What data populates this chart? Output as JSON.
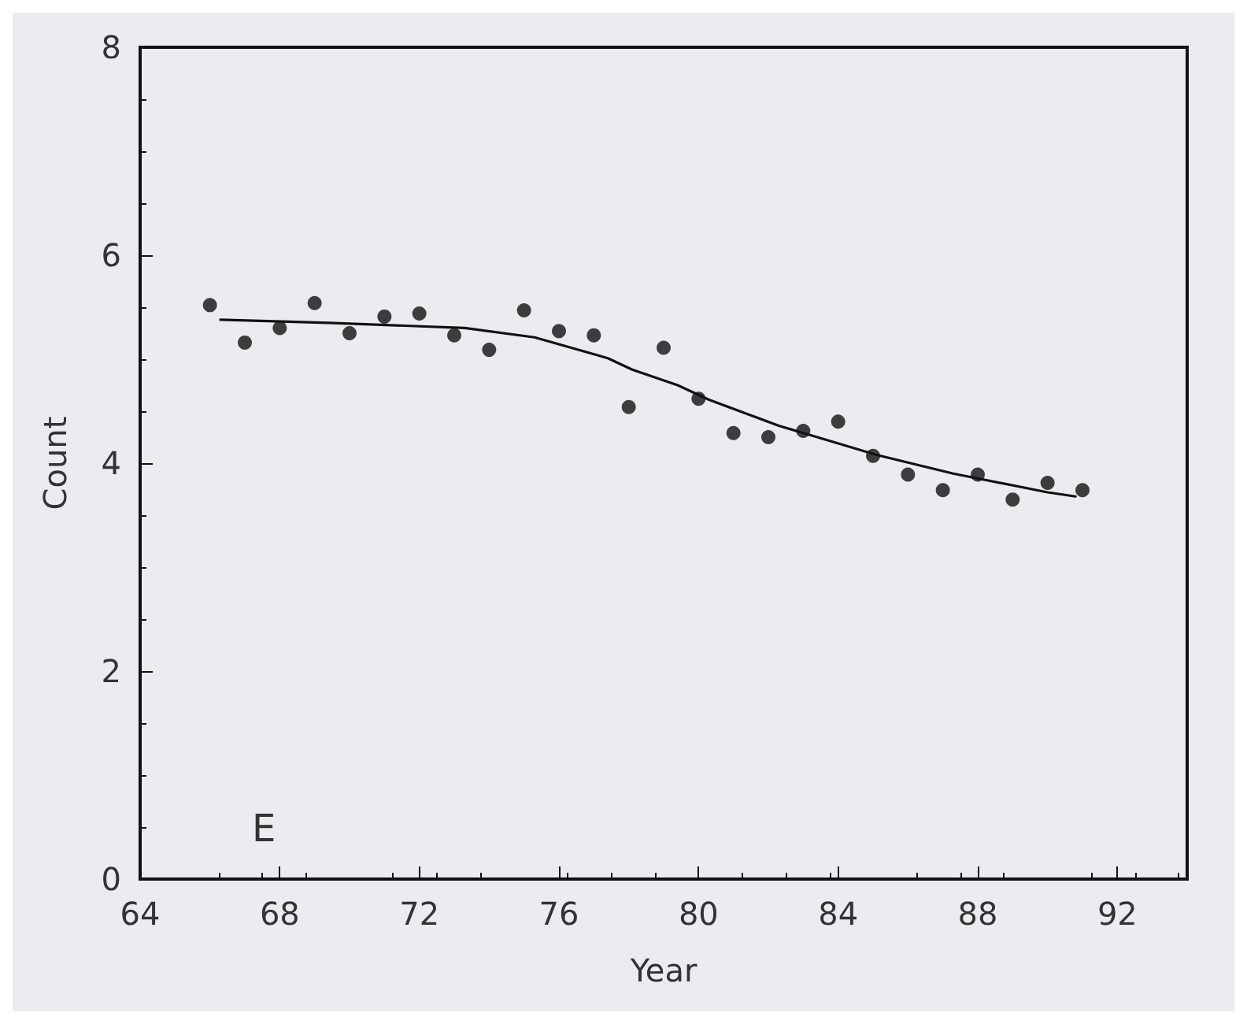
{
  "chart_data": {
    "type": "scatter",
    "xlabel": "Year",
    "ylabel": "Count",
    "annotations": [
      "E"
    ],
    "xlim": [
      64,
      94
    ],
    "xticks": [
      64,
      68,
      72,
      76,
      80,
      84,
      88,
      92
    ],
    "ylim": [
      0,
      8
    ],
    "yticks": [
      0,
      2,
      4,
      6,
      8
    ],
    "grid": false,
    "marker": "circle",
    "x": [
      66,
      67,
      68,
      69,
      70,
      71,
      72,
      73,
      74,
      75,
      76,
      77,
      78,
      79,
      80,
      81,
      82,
      83,
      84,
      85,
      86,
      87,
      88,
      89,
      90,
      91
    ],
    "series": [
      {
        "color": "#111111",
        "values": [
          5.52,
          5.16,
          5.3,
          5.54,
          5.25,
          5.41,
          5.44,
          5.23,
          5.09,
          5.47,
          5.27,
          5.23,
          4.54,
          5.11,
          4.62,
          4.29,
          4.25,
          4.31,
          4.4,
          4.07,
          3.89,
          3.74,
          3.89,
          3.65,
          3.81,
          3.74
        ]
      },
      {
        "type": "line",
        "color": "#111111",
        "marker": "none",
        "line_style": "solid",
        "x": [
          66.3,
          69.4,
          73.3,
          75.3,
          77.4,
          78.1,
          79.4,
          80.3,
          82.3,
          85.1,
          87.3,
          90.0,
          90.8
        ],
        "values": [
          5.38,
          5.35,
          5.3,
          5.21,
          5.01,
          4.9,
          4.75,
          4.61,
          4.36,
          4.08,
          3.9,
          3.72,
          3.68
        ]
      }
    ]
  }
}
